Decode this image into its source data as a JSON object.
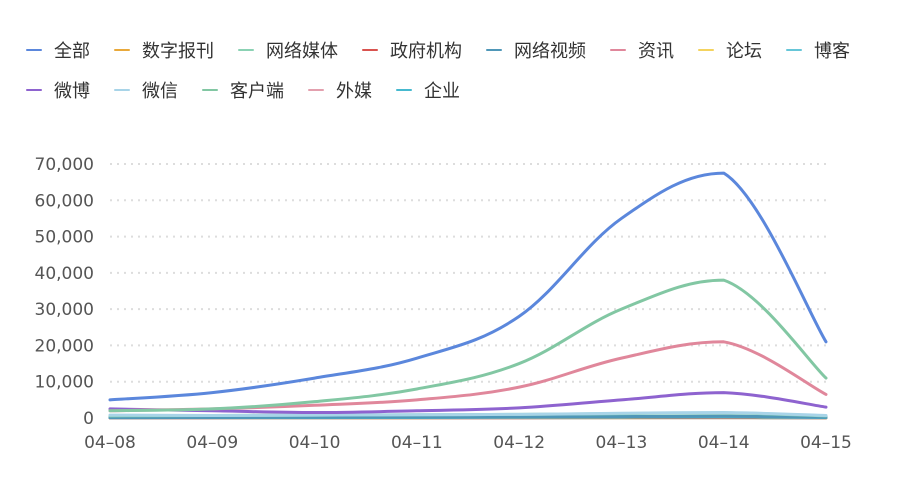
{
  "chart_data": {
    "type": "line",
    "title": "",
    "xlabel": "",
    "ylabel": "",
    "grid": "dashed-horizontal",
    "legend_position": "top-left",
    "x": [
      "04-08",
      "04-09",
      "04-10",
      "04-11",
      "04-12",
      "04-13",
      "04-14",
      "04-15"
    ],
    "x_labels": [
      "04–08",
      "04–09",
      "04–10",
      "04–11",
      "04–12",
      "04–13",
      "04–14",
      "04–15"
    ],
    "ylim": [
      0,
      70000
    ],
    "yticks": [
      0,
      10000,
      20000,
      30000,
      40000,
      50000,
      60000,
      70000
    ],
    "ytick_labels": [
      "0",
      "10,000",
      "20,000",
      "30,000",
      "40,000",
      "50,000",
      "60,000",
      "70,000"
    ],
    "series": [
      {
        "name": "全部",
        "color": "#5b87dc",
        "values": [
          5000,
          7000,
          11000,
          16500,
          28000,
          55000,
          67500,
          21000
        ]
      },
      {
        "name": "数字报刊",
        "color": "#e9a93b",
        "values": [
          100,
          100,
          100,
          120,
          150,
          200,
          250,
          120
        ]
      },
      {
        "name": "网络媒体",
        "color": "#8bd2b4",
        "values": [
          600,
          700,
          800,
          900,
          1000,
          1200,
          1400,
          600
        ]
      },
      {
        "name": "政府机构",
        "color": "#d9534f",
        "values": [
          50,
          50,
          60,
          70,
          80,
          100,
          120,
          60
        ]
      },
      {
        "name": "网络视频",
        "color": "#4f97b8",
        "values": [
          100,
          150,
          200,
          250,
          300,
          400,
          500,
          200
        ]
      },
      {
        "name": "资讯",
        "color": "#e0879b",
        "values": [
          2000,
          2500,
          3500,
          5000,
          8500,
          16500,
          21000,
          6500
        ]
      },
      {
        "name": "论坛",
        "color": "#f4d35e",
        "values": [
          50,
          50,
          50,
          60,
          70,
          80,
          100,
          50
        ]
      },
      {
        "name": "博客",
        "color": "#66c6d8",
        "values": [
          50,
          50,
          60,
          70,
          80,
          90,
          100,
          50
        ]
      },
      {
        "name": "微博",
        "color": "#8e63cf",
        "values": [
          2500,
          2000,
          1500,
          2000,
          2800,
          5000,
          7000,
          3000
        ]
      },
      {
        "name": "微信",
        "color": "#a8d4e8",
        "values": [
          800,
          700,
          800,
          900,
          1000,
          1300,
          1500,
          700
        ]
      },
      {
        "name": "客户端",
        "color": "#82c7a3",
        "values": [
          2000,
          2500,
          4500,
          8000,
          15000,
          30000,
          38000,
          11000
        ]
      },
      {
        "name": "外媒",
        "color": "#e3a0ae",
        "values": [
          100,
          100,
          120,
          150,
          200,
          250,
          300,
          150
        ]
      },
      {
        "name": "企业",
        "color": "#46b9cf",
        "values": [
          100,
          100,
          120,
          150,
          200,
          250,
          300,
          150
        ]
      }
    ]
  }
}
